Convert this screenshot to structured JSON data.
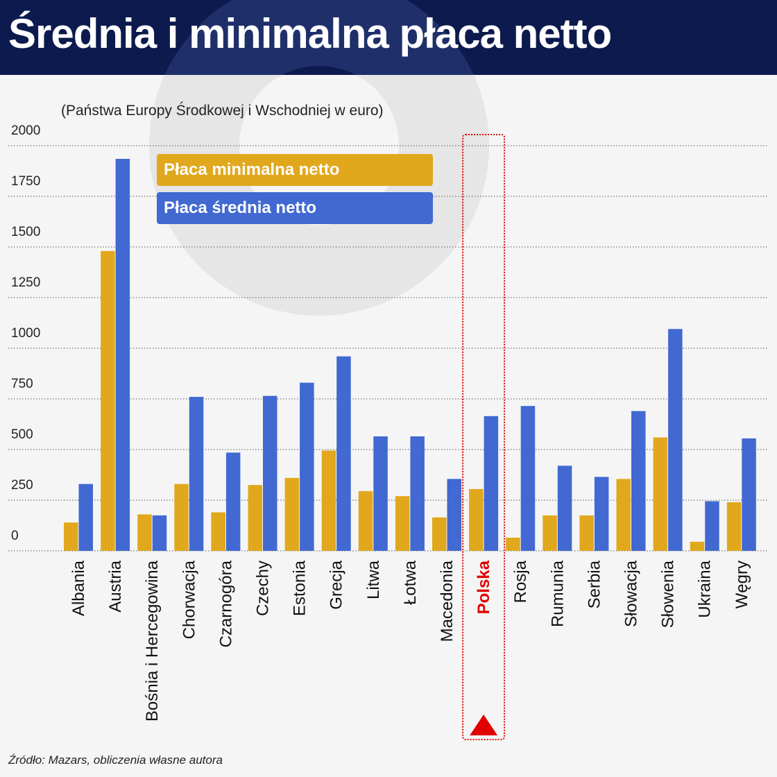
{
  "title": "Średnia i minimalna płaca netto",
  "subtitle": "(Państwa Europy Środkowej i Wschodniej w euro)",
  "source": "Źródło: Mazars, obliczenia własne autora",
  "colors": {
    "min": "#e1a81e",
    "avg": "#4169d1",
    "highlight": "#e00000",
    "title_bg": "#0c1a4e"
  },
  "legend": {
    "min_label": "Płaca minimalna netto",
    "avg_label": "Płaca średnia netto"
  },
  "chart_data": {
    "type": "bar",
    "ylim": [
      0,
      2000
    ],
    "yticks": [
      0,
      250,
      500,
      750,
      1000,
      1250,
      1500,
      1750,
      2000
    ],
    "grid": true,
    "legend_position": "top-left",
    "highlight_category": "Polska",
    "categories": [
      "Albania",
      "Austria",
      "Bośnia i Hercegowina",
      "Chorwacja",
      "Czarnogóra",
      "Czechy",
      "Estonia",
      "Grecja",
      "Litwa",
      "Łotwa",
      "Macedonia",
      "Polska",
      "Rosja",
      "Rumunia",
      "Serbia",
      "Słowacja",
      "Słowenia",
      "Ukraina",
      "Węgry"
    ],
    "series": [
      {
        "name": "Płaca minimalna netto",
        "values": [
          140,
          1480,
          180,
          330,
          190,
          325,
          360,
          495,
          295,
          270,
          165,
          305,
          65,
          175,
          175,
          355,
          560,
          45,
          240
        ]
      },
      {
        "name": "Płaca średnia netto",
        "values": [
          330,
          1935,
          175,
          760,
          485,
          765,
          830,
          960,
          565,
          565,
          355,
          665,
          715,
          420,
          365,
          690,
          1095,
          245,
          555
        ]
      }
    ]
  }
}
